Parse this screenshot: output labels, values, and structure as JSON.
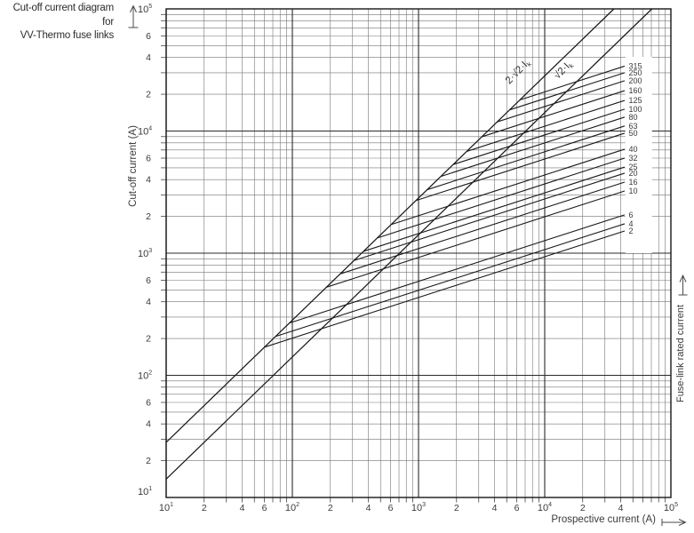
{
  "title": {
    "line1": "Cut-off current diagram for",
    "line2": "VV-Thermo fuse links"
  },
  "colors": {
    "background": "#ffffff",
    "curve": "#1a1a1a",
    "grid_major": "#2a2a2a",
    "grid_minor": "#757575",
    "text": "#3a3a3a"
  },
  "chart_data": {
    "type": "line",
    "scale": "log-log",
    "grid": "on",
    "xlabel": "Prospective current (A)",
    "ylabel": "Cut-off current (A)",
    "right_axis_label": "Fuse-link rated current",
    "xlim": [
      10,
      100000
    ],
    "ylim": [
      10,
      100000
    ],
    "x_decade_exponents": [
      1,
      2,
      3,
      4,
      5
    ],
    "y_decade_exponents": [
      1,
      2,
      3,
      4,
      5
    ],
    "x_labeled_minor_ticks": [
      20,
      40,
      60,
      200,
      400,
      600,
      2000,
      4000,
      6000,
      20000,
      40000
    ],
    "y_labeled_minor_ticks": [
      20,
      40,
      60,
      200,
      400,
      600,
      2000,
      4000,
      6000,
      20000,
      40000,
      60000
    ],
    "reference_lines": [
      {
        "name": "asymmetrical-peak-line",
        "label": "2·√2·I",
        "label_subscript": "k",
        "factor": 2.828,
        "slope_loglog": 1
      },
      {
        "name": "symmetrical-peak-line",
        "label": "√2·I",
        "label_subscript": "k",
        "factor": 1.414,
        "slope_loglog": 1
      }
    ],
    "fuse_lines": {
      "slope_loglog": 0.3333,
      "end_prospective_current_A": 43000,
      "series": [
        {
          "rating_A": 315,
          "cutoff_at_end_A": 34000
        },
        {
          "rating_A": 250,
          "cutoff_at_end_A": 30000
        },
        {
          "rating_A": 200,
          "cutoff_at_end_A": 25800
        },
        {
          "rating_A": 160,
          "cutoff_at_end_A": 21400
        },
        {
          "rating_A": 125,
          "cutoff_at_end_A": 17800
        },
        {
          "rating_A": 100,
          "cutoff_at_end_A": 15100
        },
        {
          "rating_A": 80,
          "cutoff_at_end_A": 13000
        },
        {
          "rating_A": 63,
          "cutoff_at_end_A": 11000
        },
        {
          "rating_A": 50,
          "cutoff_at_end_A": 9600
        },
        {
          "rating_A": 40,
          "cutoff_at_end_A": 7100
        },
        {
          "rating_A": 32,
          "cutoff_at_end_A": 6000
        },
        {
          "rating_A": 25,
          "cutoff_at_end_A": 5070
        },
        {
          "rating_A": 20,
          "cutoff_at_end_A": 4520
        },
        {
          "rating_A": 16,
          "cutoff_at_end_A": 3820
        },
        {
          "rating_A": 10,
          "cutoff_at_end_A": 3230
        },
        {
          "rating_A": 6,
          "cutoff_at_end_A": 2060
        },
        {
          "rating_A": 4,
          "cutoff_at_end_A": 1740
        },
        {
          "rating_A": 2,
          "cutoff_at_end_A": 1520
        }
      ]
    }
  }
}
